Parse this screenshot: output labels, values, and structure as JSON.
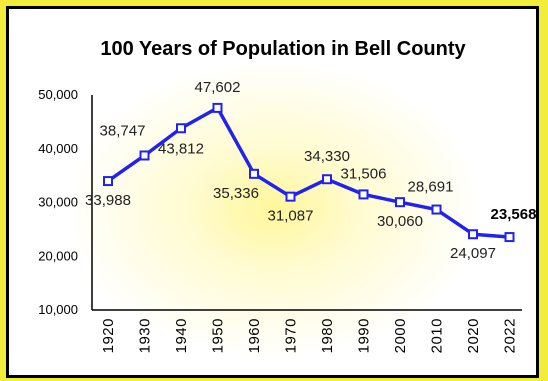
{
  "chart_data": {
    "type": "line",
    "title": "100 Years of Population in Bell County",
    "xlabel": "",
    "ylabel": "",
    "categories": [
      "1920",
      "1930",
      "1940",
      "1950",
      "1960",
      "1970",
      "1980",
      "1990",
      "2000",
      "2010",
      "2020",
      "2022"
    ],
    "series": [
      {
        "values": [
          33988,
          38747,
          43812,
          47602,
          35336,
          31087,
          34330,
          31506,
          30060,
          28691,
          24097,
          23568
        ]
      }
    ],
    "data_labels": [
      "33,988",
      "38,747",
      "43,812",
      "47,602",
      "35,336",
      "31,087",
      "34,330",
      "31,506",
      "30,060",
      "28,691",
      "24,097",
      "23,568"
    ],
    "yticks": [
      "10,000",
      "20,000",
      "30,000",
      "40,000",
      "50,000"
    ],
    "ytick_values": [
      10000,
      20000,
      30000,
      40000,
      50000
    ],
    "ylim": [
      10000,
      50000
    ],
    "grid": false,
    "line_color": "#1f22f0",
    "marker_fill": "#ffffff",
    "background_glow": "#fff79a",
    "frame_color": "#f2ec3a"
  }
}
